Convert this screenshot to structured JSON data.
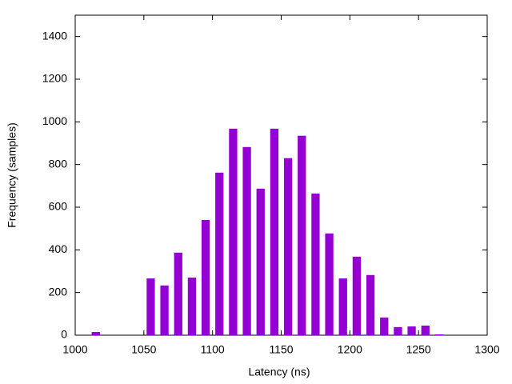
{
  "chart_data": {
    "type": "bar",
    "xlabel": "Latency (ns)",
    "ylabel": "Frequency (samples)",
    "x": [
      1015,
      1055,
      1065,
      1075,
      1085,
      1095,
      1105,
      1115,
      1125,
      1135,
      1145,
      1155,
      1165,
      1175,
      1185,
      1195,
      1205,
      1215,
      1225,
      1235,
      1245,
      1255,
      1265
    ],
    "values": [
      15,
      266,
      233,
      387,
      270,
      540,
      762,
      968,
      882,
      687,
      968,
      830,
      935,
      664,
      477,
      266,
      368,
      282,
      83,
      38,
      41,
      45,
      4
    ],
    "color": "#9400d3",
    "xlim": [
      1000,
      1300
    ],
    "xticks": [
      1000,
      1050,
      1100,
      1150,
      1200,
      1250,
      1300
    ],
    "ylim": [
      0,
      1500
    ],
    "yticks": [
      0,
      200,
      400,
      600,
      800,
      1000,
      1200,
      1400
    ]
  }
}
